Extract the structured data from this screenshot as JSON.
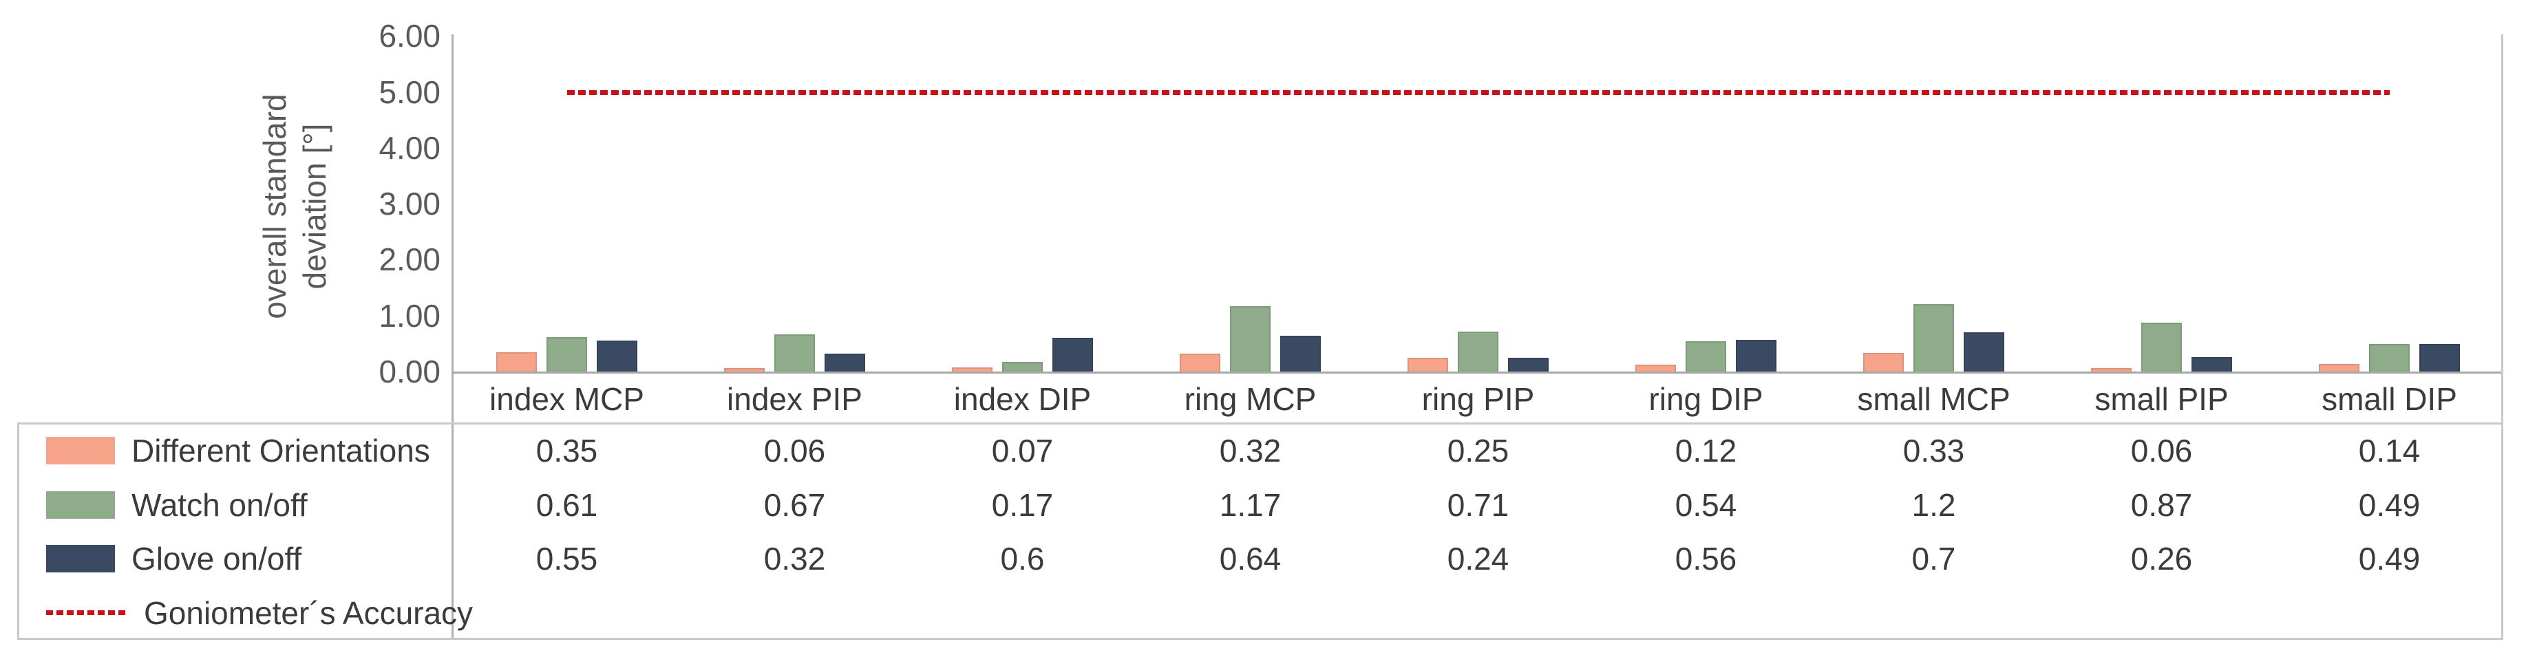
{
  "chart_data": {
    "type": "bar",
    "title": "",
    "ylabel_lines": [
      "overall standard",
      "deviation [°]"
    ],
    "yticks": [
      "6.00",
      "5.00",
      "4.00",
      "3.00",
      "2.00",
      "1.00",
      "0.00"
    ],
    "ylim": [
      0,
      6
    ],
    "grid": false,
    "legend_position": "left-of-table",
    "categories": [
      "index MCP",
      "index PIP",
      "index DIP",
      "ring MCP",
      "ring PIP",
      "ring DIP",
      "small MCP",
      "small PIP",
      "small DIP"
    ],
    "series": [
      {
        "name": "Different Orientations",
        "color": "#f7a38a",
        "values": [
          0.35,
          0.06,
          0.07,
          0.32,
          0.25,
          0.12,
          0.33,
          0.06,
          0.14
        ]
      },
      {
        "name": "Watch on/off",
        "color": "#8eac8a",
        "values": [
          0.61,
          0.67,
          0.17,
          1.17,
          0.71,
          0.54,
          1.2,
          0.87,
          0.49
        ]
      },
      {
        "name": "Glove on/off",
        "color": "#3b4a63",
        "values": [
          0.55,
          0.32,
          0.6,
          0.64,
          0.24,
          0.56,
          0.7,
          0.26,
          0.49
        ]
      }
    ],
    "reference_line": {
      "name": "Goniometer´s Accuracy",
      "value": 5.0,
      "color": "#cb1114",
      "style": "dashed"
    }
  },
  "colors": {
    "axis_line": "#b0b0b0",
    "table_border": "#c9c9c9",
    "tick_text": "#595959",
    "body_text": "#3b3b3b"
  }
}
